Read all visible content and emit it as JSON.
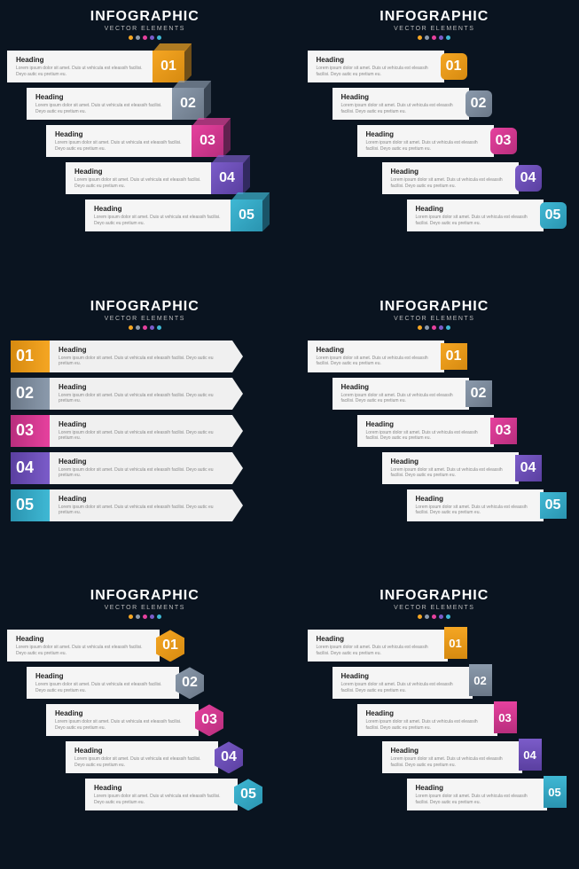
{
  "header": {
    "title": "INFOGRAPHIC",
    "subtitle": "VECTOR ELEMENTS",
    "dot_colors": [
      "#f5a623",
      "#8b9aac",
      "#e6419e",
      "#7b5cc9",
      "#3fb8d4"
    ]
  },
  "colors": {
    "bg": "#0a1420",
    "card": "#f5f5f5",
    "text": "#222222",
    "muted": "#888888"
  },
  "item_content": {
    "heading": "Heading",
    "body": "Lorem ipsum dolor sit amet. Duis ut vehicula est eleassih facilisi. Deyo autic eu pretium eu."
  },
  "numbers": [
    "01",
    "02",
    "03",
    "04",
    "05"
  ],
  "palettes": {
    "primary": [
      "#f5a623",
      "#8b9aac",
      "#e6419e",
      "#7b5cc9",
      "#3fb8d4"
    ],
    "gradient_dark": [
      "#d68a10",
      "#6b7888",
      "#b82e7d",
      "#5a3fa0",
      "#2a94b0"
    ]
  },
  "panels": [
    {
      "id": "p1",
      "badge_type": "cube",
      "stagger": true,
      "number_side": "right"
    },
    {
      "id": "p2",
      "badge_type": "rsquare",
      "stagger": true,
      "number_side": "right"
    },
    {
      "id": "p3",
      "badge_type": "arrow",
      "stagger": false,
      "number_side": "left"
    },
    {
      "id": "p4",
      "badge_type": "square",
      "stagger": true,
      "number_side": "right"
    },
    {
      "id": "p5",
      "badge_type": "hex",
      "stagger": true,
      "number_side": "right"
    },
    {
      "id": "p6",
      "badge_type": "ribbon",
      "stagger": true,
      "number_side": "right"
    }
  ]
}
